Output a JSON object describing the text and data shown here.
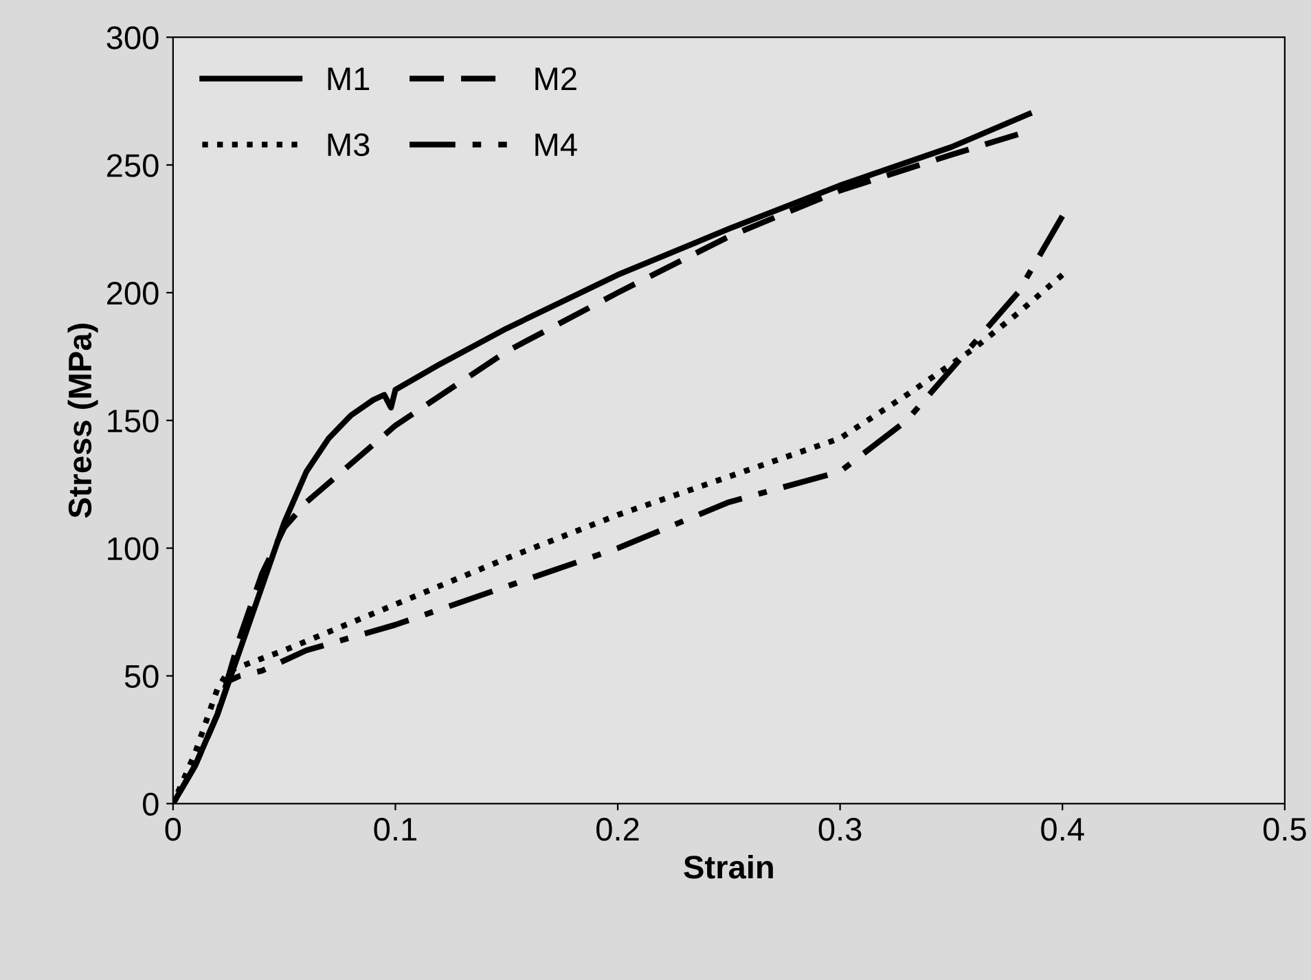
{
  "chart_data": {
    "type": "line",
    "xlabel": "Strain",
    "ylabel": "Stress (MPa)",
    "xlim": [
      0,
      0.5
    ],
    "ylim": [
      0,
      300
    ],
    "xticks": [
      0,
      0.1,
      0.2,
      0.3,
      0.4,
      0.5
    ],
    "yticks": [
      0,
      50,
      100,
      150,
      200,
      250,
      300
    ],
    "grid": false,
    "legend": "top left",
    "marker": "none",
    "series": [
      {
        "name": "M1",
        "color": "#000000",
        "line_style": "solid",
        "x": [
          0,
          0.01,
          0.02,
          0.03,
          0.04,
          0.05,
          0.06,
          0.07,
          0.08,
          0.09,
          0.095,
          0.098,
          0.1,
          0.12,
          0.15,
          0.2,
          0.25,
          0.3,
          0.35,
          0.385
        ],
        "values": [
          0,
          15,
          35,
          60,
          85,
          110,
          130,
          143,
          152,
          158,
          160,
          155,
          162,
          172,
          186,
          207,
          225,
          242,
          257,
          270
        ]
      },
      {
        "name": "M2",
        "color": "#000000",
        "line_style": "dashed",
        "x": [
          0,
          0.01,
          0.02,
          0.03,
          0.04,
          0.05,
          0.06,
          0.08,
          0.1,
          0.15,
          0.2,
          0.25,
          0.3,
          0.35,
          0.38
        ],
        "values": [
          0,
          15,
          35,
          65,
          90,
          108,
          118,
          133,
          148,
          177,
          200,
          222,
          240,
          254,
          262
        ]
      },
      {
        "name": "M3",
        "color": "#000000",
        "line_style": "dotted",
        "x": [
          0,
          0.01,
          0.02,
          0.025,
          0.05,
          0.1,
          0.15,
          0.2,
          0.25,
          0.3,
          0.33,
          0.36,
          0.38,
          0.4
        ],
        "values": [
          0,
          20,
          45,
          52,
          60,
          78,
          96,
          113,
          128,
          143,
          160,
          178,
          192,
          207
        ]
      },
      {
        "name": "M4",
        "color": "#000000",
        "line_style": "dashdot",
        "x": [
          0,
          0.01,
          0.02,
          0.025,
          0.03,
          0.04,
          0.06,
          0.08,
          0.1,
          0.15,
          0.2,
          0.25,
          0.3,
          0.33,
          0.36,
          0.38,
          0.4
        ],
        "values": [
          0,
          15,
          35,
          48,
          50,
          52,
          60,
          65,
          70,
          85,
          100,
          118,
          130,
          150,
          180,
          200,
          230
        ]
      }
    ]
  }
}
